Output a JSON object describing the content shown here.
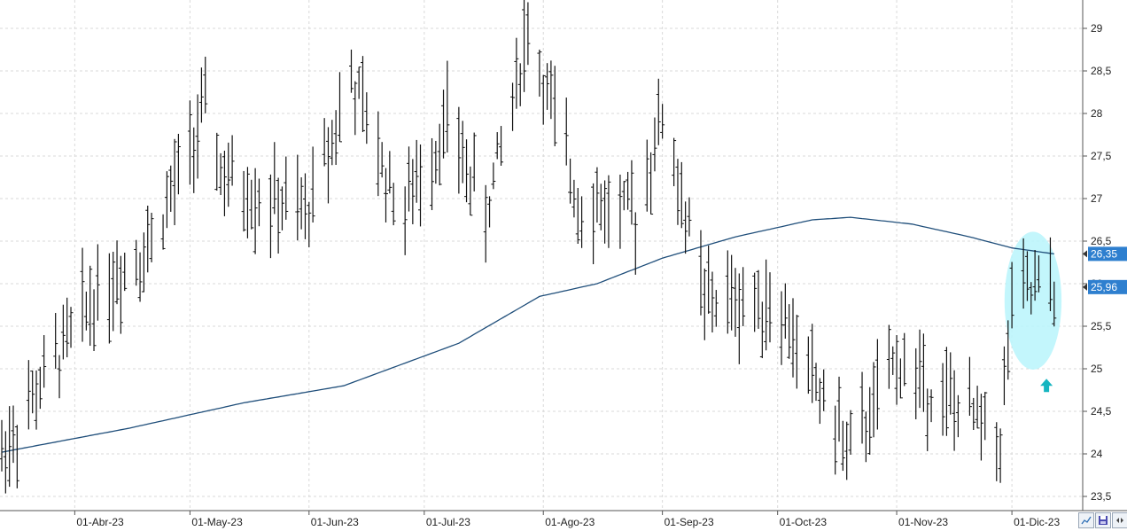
{
  "chart_data": {
    "type": "ohlc",
    "y_ticks": [
      "23,5",
      "24",
      "24,5",
      "25",
      "25,5",
      "26",
      "26,5",
      "27",
      "27,5",
      "28",
      "28,5",
      "29"
    ],
    "y_tick_values": [
      23.5,
      24,
      24.5,
      25,
      25.5,
      26,
      26.5,
      27,
      27.5,
      28,
      28.5,
      29
    ],
    "ylim": [
      23.35,
      29.25
    ],
    "x_labels": [
      {
        "date": "2023-04-01",
        "label": "01-Abr-23"
      },
      {
        "date": "2023-05-01",
        "label": "01-May-23"
      },
      {
        "date": "2023-06-01",
        "label": "01-Jun-23"
      },
      {
        "date": "2023-07-01",
        "label": "01-Jul-23"
      },
      {
        "date": "2023-08-01",
        "label": "01-Ago-23"
      },
      {
        "date": "2023-09-01",
        "label": "01-Sep-23"
      },
      {
        "date": "2023-10-01",
        "label": "01-Oct-23"
      },
      {
        "date": "2023-11-01",
        "label": "01-Nov-23"
      },
      {
        "date": "2023-12-01",
        "label": "01-Dic-23"
      }
    ],
    "grid": true,
    "price_tags": [
      {
        "label": "26,35",
        "value": 26.35,
        "series": "moving-average"
      },
      {
        "label": "25,96",
        "value": 25.96,
        "series": "price"
      }
    ],
    "price_series_key_points": [
      {
        "date": "2023-03-13",
        "close": 24.0
      },
      {
        "date": "2023-04-05",
        "close": 25.8
      },
      {
        "date": "2023-04-21",
        "close": 26.5
      },
      {
        "date": "2023-05-05",
        "close": 28.0
      },
      {
        "date": "2023-05-10",
        "close": 27.2
      },
      {
        "date": "2023-05-31",
        "close": 26.8
      },
      {
        "date": "2023-06-12",
        "close": 28.4
      },
      {
        "date": "2023-06-25",
        "close": 26.8
      },
      {
        "date": "2023-07-07",
        "close": 27.9
      },
      {
        "date": "2023-07-17",
        "close": 26.8
      },
      {
        "date": "2023-07-28",
        "close": 29.0
      },
      {
        "date": "2023-08-10",
        "close": 27.0
      },
      {
        "date": "2023-08-25",
        "close": 26.8
      },
      {
        "date": "2023-09-01",
        "close": 28.0
      },
      {
        "date": "2023-09-12",
        "close": 25.8
      },
      {
        "date": "2023-09-30",
        "close": 25.8
      },
      {
        "date": "2023-10-20",
        "close": 24.0
      },
      {
        "date": "2023-11-01",
        "close": 25.1
      },
      {
        "date": "2023-11-15",
        "close": 24.6
      },
      {
        "date": "2023-11-28",
        "close": 24.2
      },
      {
        "date": "2023-12-01",
        "close": 25.8
      },
      {
        "date": "2023-12-12",
        "close": 25.96
      }
    ],
    "moving_average_key_points": [
      {
        "date": "2023-03-13",
        "value": 24.02
      },
      {
        "date": "2023-04-15",
        "value": 24.3
      },
      {
        "date": "2023-05-15",
        "value": 24.6
      },
      {
        "date": "2023-06-10",
        "value": 24.8
      },
      {
        "date": "2023-07-10",
        "value": 25.3
      },
      {
        "date": "2023-07-31",
        "value": 25.85
      },
      {
        "date": "2023-08-15",
        "value": 26.0
      },
      {
        "date": "2023-09-01",
        "value": 26.3
      },
      {
        "date": "2023-09-20",
        "value": 26.55
      },
      {
        "date": "2023-10-10",
        "value": 26.75
      },
      {
        "date": "2023-10-20",
        "value": 26.78
      },
      {
        "date": "2023-11-05",
        "value": 26.7
      },
      {
        "date": "2023-11-20",
        "value": 26.55
      },
      {
        "date": "2023-12-01",
        "value": 26.42
      },
      {
        "date": "2023-12-12",
        "value": 26.35
      }
    ],
    "highlight": {
      "date_from": "2023-11-30",
      "date_to": "2023-12-13",
      "value_from": 25.0,
      "value_to": 26.6
    },
    "arrow_marker": {
      "date": "2023-12-10",
      "value": 24.8,
      "direction": "up"
    }
  },
  "colors": {
    "price": "#111111",
    "moving_average": "#1f4e7a",
    "tag_blue": "#2e7fcf",
    "highlight": "#b8f4fb",
    "arrow": "#16b5c0",
    "grid": "#d9d9d9"
  }
}
